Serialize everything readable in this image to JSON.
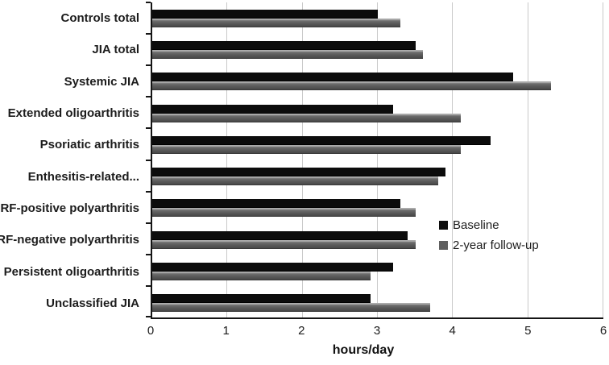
{
  "chart_data": {
    "type": "bar",
    "orientation": "horizontal",
    "title": "",
    "xlabel": "hours/day",
    "xlim": [
      0,
      6
    ],
    "xticks": [
      0,
      1,
      2,
      3,
      4,
      5,
      6
    ],
    "xtick_labels": [
      "0",
      "1",
      "2",
      "3",
      "4",
      "5",
      "6"
    ],
    "grid": "vertical-gridlines-on",
    "legend_position": "middle-right",
    "categories": [
      "Controls total",
      "JIA total",
      "Systemic JIA",
      "Extended oligoarthritis",
      "Psoriatic arthritis",
      "Enthesitis-related...",
      "RF-positive polyarthritis",
      "RF-negative polyarthritis",
      "Persistent oligoarthritis",
      "Unclassified JIA"
    ],
    "series": [
      {
        "name": "Baseline",
        "color": "#0c0c0c",
        "values": [
          3.0,
          3.5,
          4.8,
          3.2,
          4.5,
          3.9,
          3.3,
          3.4,
          3.2,
          2.9
        ]
      },
      {
        "name": "2-year follow-up",
        "color": "#5f5f5f",
        "values": [
          3.3,
          3.6,
          5.3,
          4.1,
          4.1,
          3.8,
          3.5,
          3.5,
          2.9,
          3.7
        ]
      }
    ],
    "colors": {
      "gridline": "#c9c9c9",
      "axis": "#151515",
      "text": "#1c1c1c"
    }
  }
}
